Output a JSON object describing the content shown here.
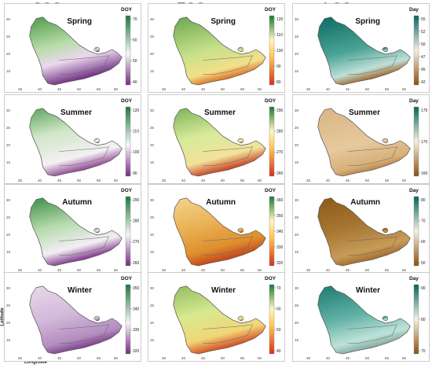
{
  "columns": [
    {
      "title": "SOS",
      "unit": "DOY",
      "ramp": "purple-green"
    },
    {
      "title": "EOS",
      "unit": "DOY",
      "ramp": "red-yellow-green"
    },
    {
      "title": "LOS",
      "unit": "Day",
      "ramp": "brown-teal"
    }
  ],
  "rows": [
    "Spring",
    "Summer",
    "Autumn",
    "Winter"
  ],
  "panels": [
    [
      {
        "season": "Spring",
        "unit": "DOY",
        "ticks": [
          "70",
          "60",
          "50",
          "40"
        ]
      },
      {
        "season": "Spring",
        "unit": "DOY",
        "ticks": [
          "120",
          "110",
          "100",
          "90",
          "80"
        ]
      },
      {
        "season": "Spring",
        "unit": "Day",
        "ticks": [
          "55",
          "52",
          "50",
          "47",
          "45",
          "42"
        ]
      }
    ],
    [
      {
        "season": "Summer",
        "unit": "DOY",
        "ticks": [
          "120",
          "110",
          "100",
          "90"
        ]
      },
      {
        "season": "Summer",
        "unit": "DOY",
        "ticks": [
          "290",
          "280",
          "270",
          "260"
        ]
      },
      {
        "season": "Summer",
        "unit": "Day",
        "ticks": [
          "175",
          "170",
          "160"
        ]
      }
    ],
    [
      {
        "season": "Autumn",
        "unit": "DOY",
        "ticks": [
          "290",
          "280",
          "270",
          "260"
        ]
      },
      {
        "season": "Autumn",
        "unit": "DOY",
        "ticks": [
          "360",
          "350",
          "340",
          "330",
          "320"
        ]
      },
      {
        "season": "Autumn",
        "unit": "Day",
        "ticks": [
          "80",
          "70",
          "60",
          "50"
        ]
      }
    ],
    [
      {
        "season": "Winter",
        "unit": "DOY",
        "ticks": [
          "350",
          "340",
          "330",
          "320"
        ]
      },
      {
        "season": "Winter",
        "unit": "DOY",
        "ticks": [
          "70",
          "60",
          "50",
          "40"
        ]
      },
      {
        "season": "Winter",
        "unit": "Day",
        "ticks": [
          "90",
          "80",
          "70"
        ]
      }
    ]
  ],
  "map_lat_ticks": [
    "30",
    "25",
    "20",
    "15"
  ],
  "map_lon_ticks": [
    "35",
    "40",
    "45",
    "50",
    "55",
    "60"
  ],
  "axis_labels": {
    "x": "Longitude",
    "y": "Latitude"
  },
  "colors": {
    "purple": "#762a83",
    "green": "#1b7837",
    "red": "#d7301f",
    "yellow": "#fff7bc",
    "brown": "#8c510a",
    "teal": "#01665e"
  }
}
